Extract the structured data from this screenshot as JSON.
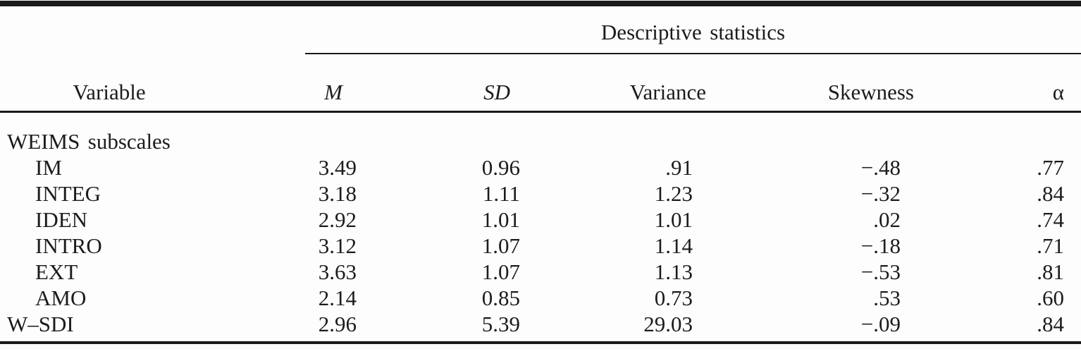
{
  "table": {
    "spanner_label": "Descriptive statistics",
    "columns": {
      "variable": "Variable",
      "m": "M",
      "sd": "SD",
      "variance": "Variance",
      "skewness": "Skewness",
      "alpha": "α"
    },
    "rows": [
      {
        "label": "WEIMS subscales",
        "m": "",
        "sd": "",
        "variance": "",
        "skewness": "",
        "alpha": ""
      },
      {
        "label": "IM",
        "m": "3.49",
        "sd": "0.96",
        "variance": ".91",
        "skewness": "−.48",
        "alpha": ".77"
      },
      {
        "label": "INTEG",
        "m": "3.18",
        "sd": "1.11",
        "variance": "1.23",
        "skewness": "−.32",
        "alpha": ".84"
      },
      {
        "label": "IDEN",
        "m": "2.92",
        "sd": "1.01",
        "variance": "1.01",
        "skewness": ".02",
        "alpha": ".74"
      },
      {
        "label": "INTRO",
        "m": "3.12",
        "sd": "1.07",
        "variance": "1.14",
        "skewness": "−.18",
        "alpha": ".71"
      },
      {
        "label": "EXT",
        "m": "3.63",
        "sd": "1.07",
        "variance": "1.13",
        "skewness": "−.53",
        "alpha": ".81"
      },
      {
        "label": "AMO",
        "m": "2.14",
        "sd": "0.85",
        "variance": "0.73",
        "skewness": ".53",
        "alpha": ".60"
      },
      {
        "label": "W–SDI",
        "m": "2.96",
        "sd": "5.39",
        "variance": "29.03",
        "skewness": "−.09",
        "alpha": ".84"
      }
    ]
  },
  "colors": {
    "ink": "#1c1c1c",
    "rule": "#1a1a1a",
    "background": "#fdfdfd"
  }
}
